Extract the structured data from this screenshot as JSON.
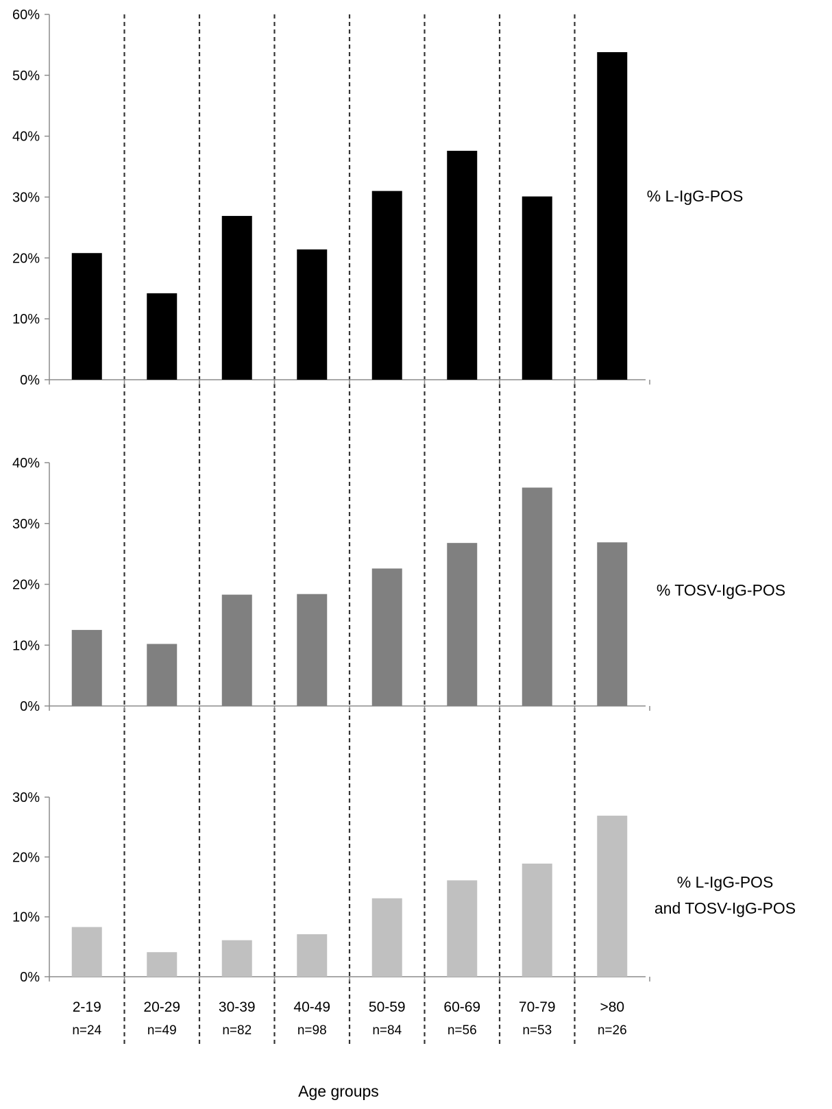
{
  "chart_data": [
    {
      "type": "bar",
      "categories": [
        "2-19",
        "20-29",
        "30-39",
        "40-49",
        "50-59",
        "60-69",
        "70-79",
        ">80"
      ],
      "series": [
        {
          "name": "% L-IgG-POS",
          "values": [
            20.8,
            14.2,
            26.9,
            21.4,
            31.0,
            37.6,
            30.1,
            53.8
          ]
        }
      ],
      "ylim": [
        0,
        60
      ],
      "yticks": [
        "0%",
        "10%",
        "20%",
        "30%",
        "40%",
        "50%",
        "60%"
      ],
      "color": "#000000"
    },
    {
      "type": "bar",
      "categories": [
        "2-19",
        "20-29",
        "30-39",
        "40-49",
        "50-59",
        "60-69",
        "70-79",
        ">80"
      ],
      "series": [
        {
          "name": "% TOSV-IgG-POS",
          "values": [
            12.5,
            10.2,
            18.3,
            18.4,
            22.6,
            26.8,
            35.9,
            26.9
          ]
        }
      ],
      "ylim": [
        0,
        40
      ],
      "yticks": [
        "0%",
        "10%",
        "20%",
        "30%",
        "40%"
      ],
      "color": "#808080"
    },
    {
      "type": "bar",
      "categories": [
        "2-19",
        "20-29",
        "30-39",
        "40-49",
        "50-59",
        "60-69",
        "70-79",
        ">80"
      ],
      "series": [
        {
          "name": "% L-IgG-POS|and TOSV-IgG-POS",
          "values": [
            8.3,
            4.1,
            6.1,
            7.1,
            13.1,
            16.1,
            18.9,
            26.9
          ]
        }
      ],
      "ylim": [
        0,
        30
      ],
      "yticks": [
        "0%",
        "10%",
        "20%",
        "30%"
      ],
      "color": "#c0c0c0"
    }
  ],
  "categories_n": [
    "n=24",
    "n=49",
    "n=82",
    "n=98",
    "n=84",
    "n=56",
    "n=53",
    "n=26"
  ],
  "xlabel": "Age groups",
  "label_lines": {
    "p3_line1": "% L-IgG-POS",
    "p3_line2": "and TOSV-IgG-POS"
  }
}
